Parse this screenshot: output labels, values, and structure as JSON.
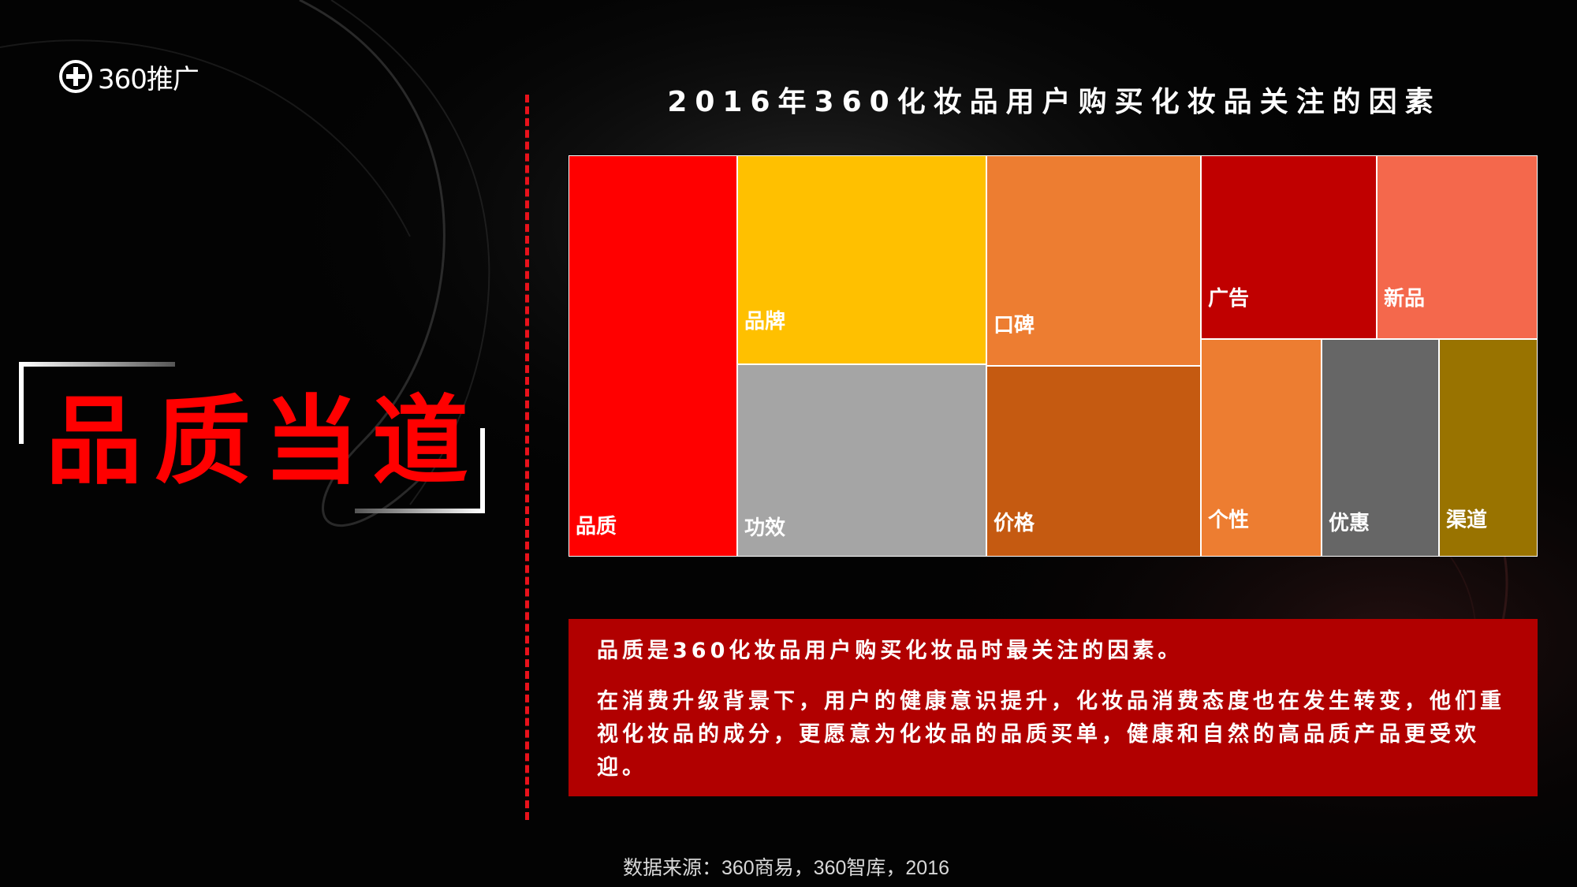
{
  "logo": {
    "text": "360推广",
    "icon": "plus-circle-icon"
  },
  "headline": "品质当道",
  "chart_data": {
    "type": "treemap",
    "title": "2016年360化妆品用户购买化妆品关注的因素",
    "items": [
      {
        "label": "品质",
        "color": "#ff0000"
      },
      {
        "label": "品牌",
        "color": "#ffc000"
      },
      {
        "label": "功效",
        "color": "#a5a5a5"
      },
      {
        "label": "口碑",
        "color": "#ed7d31"
      },
      {
        "label": "价格",
        "color": "#c55a11"
      },
      {
        "label": "广告",
        "color": "#c00000"
      },
      {
        "label": "新品",
        "color": "#f4684c"
      },
      {
        "label": "个性",
        "color": "#ed7d31"
      },
      {
        "label": "优惠",
        "color": "#666666"
      },
      {
        "label": "渠道",
        "color": "#997300"
      }
    ]
  },
  "summary": {
    "line1": "品质是360化妆品用户购买化妆品时最关注的因素。",
    "line2": "在消费升级背景下，用户的健康意识提升，化妆品消费态度也在发生转变，他们重视化妆品的成分，更愿意为化妆品的品质买单，健康和自然的高品质产品更受欢迎。"
  },
  "source": "数据来源：360商易，360智库，2016",
  "colors": {
    "accent_red": "#ff0000",
    "divider_red": "#e8121b",
    "summary_bg": "#b10000"
  }
}
